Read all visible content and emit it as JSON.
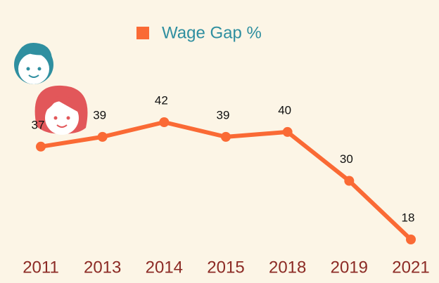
{
  "chart_data": {
    "type": "line",
    "categories": [
      "2011",
      "2013",
      "2014",
      "2015",
      "2018",
      "2019",
      "2021"
    ],
    "series": [
      {
        "name": "Wage Gap %",
        "color": "#fa6a35",
        "values": [
          37,
          39,
          42,
          39,
          40,
          30,
          18
        ]
      }
    ]
  }
}
